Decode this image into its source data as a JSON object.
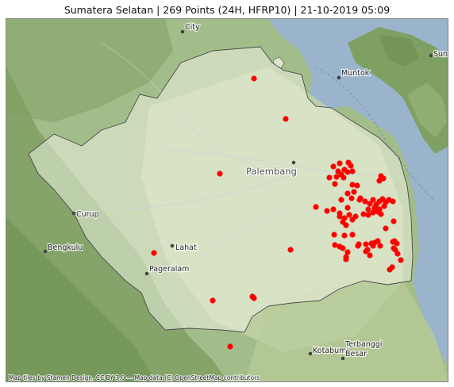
{
  "title": "Sumatera Selatan | 269 Points (24H, HFRP10) | 21-10-2019 05:09",
  "attribution": "Map tiles by Stamen Design, CC BY 3.0 — Map data (C) OpenStreetMap contributors",
  "colors": {
    "hotspot": "#ff0000",
    "sea": "#9ab4cb",
    "land": "#a7c08d",
    "province_fill": "#e5ebd8"
  },
  "places": [
    {
      "name": "City",
      "key": "city"
    },
    {
      "name": "Muntok",
      "key": "muntok"
    },
    {
      "name": "Sun",
      "key": "sun"
    },
    {
      "name": "Palembang",
      "key": "palembang"
    },
    {
      "name": "Curup",
      "key": "curup"
    },
    {
      "name": "Bengkulu",
      "key": "bengkulu"
    },
    {
      "name": "Lahat",
      "key": "lahat"
    },
    {
      "name": "Pageralam",
      "key": "pageralam"
    },
    {
      "name": "Kotabumi",
      "key": "kotabumi"
    },
    {
      "name": "Terbanggi",
      "key": "terbanggi1"
    },
    {
      "name": "Besar",
      "key": "terbanggi2"
    }
  ]
}
